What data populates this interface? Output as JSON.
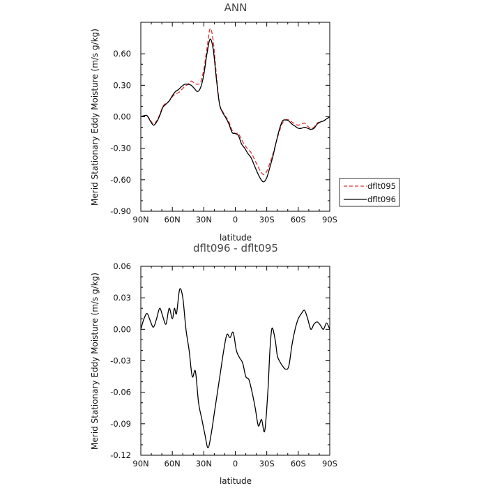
{
  "chart_data": [
    {
      "type": "line",
      "title": "ANN",
      "xlabel": "latitude",
      "ylabel": "Merid Stationary Eddy Moisture (m/s g/kg)",
      "xlim": [
        90,
        -90
      ],
      "ylim": [
        -0.9,
        0.9
      ],
      "x_ticks": [
        90,
        60,
        30,
        0,
        -30,
        -60,
        -90
      ],
      "x_tick_labels": [
        "90N",
        "60N",
        "30N",
        "0",
        "30S",
        "60S",
        "90S"
      ],
      "y_ticks": [
        0.6,
        0.3,
        0.0,
        -0.3,
        -0.6,
        -0.9
      ],
      "y_tick_labels": [
        "0.60",
        "0.30",
        "0.00",
        "-0.30",
        "-0.60",
        "-0.90"
      ],
      "legend_position": "right",
      "series": [
        {
          "name": "dflt095",
          "color": "#e03030",
          "dash": "dashed",
          "x": [
            90,
            87,
            84,
            81,
            78,
            75,
            72,
            69,
            66,
            63,
            60,
            57,
            54,
            51,
            48,
            45,
            42,
            39,
            36,
            33,
            30,
            27,
            24,
            21,
            18,
            15,
            12,
            9,
            6,
            3,
            0,
            -3,
            -6,
            -9,
            -12,
            -15,
            -18,
            -21,
            -24,
            -27,
            -30,
            -33,
            -36,
            -39,
            -42,
            -45,
            -48,
            -51,
            -54,
            -57,
            -60,
            -63,
            -66,
            -69,
            -72,
            -75,
            -78,
            -81,
            -84,
            -87,
            -90
          ],
          "values": [
            0.0,
            0.01,
            0.01,
            -0.03,
            -0.07,
            -0.04,
            0.02,
            0.1,
            0.13,
            0.15,
            0.19,
            0.22,
            0.23,
            0.26,
            0.29,
            0.31,
            0.34,
            0.32,
            0.31,
            0.33,
            0.45,
            0.65,
            0.84,
            0.72,
            0.4,
            0.12,
            0.05,
            0.0,
            -0.05,
            -0.13,
            -0.16,
            -0.16,
            -0.22,
            -0.27,
            -0.31,
            -0.34,
            -0.4,
            -0.46,
            -0.52,
            -0.55,
            -0.52,
            -0.44,
            -0.35,
            -0.24,
            -0.14,
            -0.06,
            -0.03,
            -0.03,
            -0.05,
            -0.07,
            -0.08,
            -0.07,
            -0.06,
            -0.09,
            -0.11,
            -0.1,
            -0.06,
            -0.05,
            -0.04,
            -0.02,
            0.0
          ]
        },
        {
          "name": "dflt096",
          "color": "#000000",
          "dash": "solid",
          "x": [
            90,
            87,
            84,
            81,
            78,
            75,
            72,
            69,
            66,
            63,
            60,
            57,
            54,
            51,
            48,
            45,
            42,
            39,
            36,
            33,
            30,
            27,
            24,
            21,
            18,
            15,
            12,
            9,
            6,
            3,
            0,
            -3,
            -6,
            -9,
            -12,
            -15,
            -18,
            -21,
            -24,
            -27,
            -30,
            -33,
            -36,
            -39,
            -42,
            -45,
            -48,
            -51,
            -54,
            -57,
            -60,
            -63,
            -66,
            -69,
            -72,
            -75,
            -78,
            -81,
            -84,
            -87,
            -90
          ],
          "values": [
            0.0,
            0.01,
            0.01,
            -0.04,
            -0.08,
            -0.05,
            0.01,
            0.09,
            0.12,
            0.15,
            0.2,
            0.24,
            0.26,
            0.29,
            0.31,
            0.31,
            0.3,
            0.27,
            0.24,
            0.28,
            0.4,
            0.6,
            0.74,
            0.64,
            0.36,
            0.12,
            0.04,
            -0.01,
            -0.07,
            -0.15,
            -0.16,
            -0.18,
            -0.26,
            -0.3,
            -0.35,
            -0.39,
            -0.46,
            -0.53,
            -0.59,
            -0.62,
            -0.58,
            -0.48,
            -0.37,
            -0.24,
            -0.12,
            -0.04,
            -0.03,
            -0.04,
            -0.07,
            -0.09,
            -0.11,
            -0.11,
            -0.1,
            -0.11,
            -0.12,
            -0.11,
            -0.07,
            -0.05,
            -0.04,
            -0.02,
            0.0
          ]
        }
      ]
    },
    {
      "type": "line",
      "title": "dflt096 - dflt095",
      "xlabel": "latitude",
      "ylabel": "Merid Stationary Eddy Moisture (m/s g/kg)",
      "xlim": [
        90,
        -90
      ],
      "ylim": [
        -0.12,
        0.06
      ],
      "x_ticks": [
        90,
        60,
        30,
        0,
        -30,
        -60,
        -90
      ],
      "x_tick_labels": [
        "90N",
        "60N",
        "30N",
        "0",
        "30S",
        "60S",
        "90S"
      ],
      "y_ticks": [
        0.06,
        0.03,
        0.0,
        -0.03,
        -0.06,
        -0.09,
        -0.12
      ],
      "y_tick_labels": [
        "0.06",
        "0.03",
        "0.00",
        "-0.03",
        "-0.06",
        "-0.09",
        "-0.12"
      ],
      "series": [
        {
          "color": "#000000",
          "dash": "solid",
          "x": [
            90,
            87,
            84,
            81,
            78,
            75,
            72,
            69,
            66,
            63,
            60,
            58,
            56,
            53,
            50,
            47,
            44,
            41,
            38,
            35,
            32,
            29,
            26,
            23,
            20,
            17,
            14,
            11,
            8,
            5,
            2,
            -1,
            -4,
            -7,
            -10,
            -13,
            -16,
            -19,
            -22,
            -25,
            -28,
            -31,
            -33,
            -35,
            -38,
            -40,
            -42,
            -45,
            -48,
            -51,
            -54,
            -57,
            -60,
            -63,
            -66,
            -69,
            -72,
            -75,
            -78,
            -81,
            -84,
            -87,
            -90
          ],
          "values": [
            0.0,
            0.01,
            0.015,
            0.008,
            0.002,
            0.01,
            0.02,
            0.012,
            0.005,
            0.02,
            0.01,
            0.02,
            0.015,
            0.038,
            0.03,
            0.0,
            -0.02,
            -0.045,
            -0.04,
            -0.07,
            -0.085,
            -0.1,
            -0.113,
            -0.1,
            -0.08,
            -0.06,
            -0.04,
            -0.02,
            -0.005,
            -0.008,
            -0.003,
            -0.02,
            -0.027,
            -0.032,
            -0.045,
            -0.048,
            -0.06,
            -0.075,
            -0.092,
            -0.086,
            -0.097,
            -0.06,
            -0.02,
            0.001,
            -0.01,
            -0.025,
            -0.03,
            -0.035,
            -0.038,
            -0.035,
            -0.015,
            0.0,
            0.01,
            0.015,
            0.018,
            0.01,
            0.0,
            0.005,
            0.007,
            0.004,
            0.0,
            0.006,
            0.0
          ]
        }
      ]
    }
  ]
}
